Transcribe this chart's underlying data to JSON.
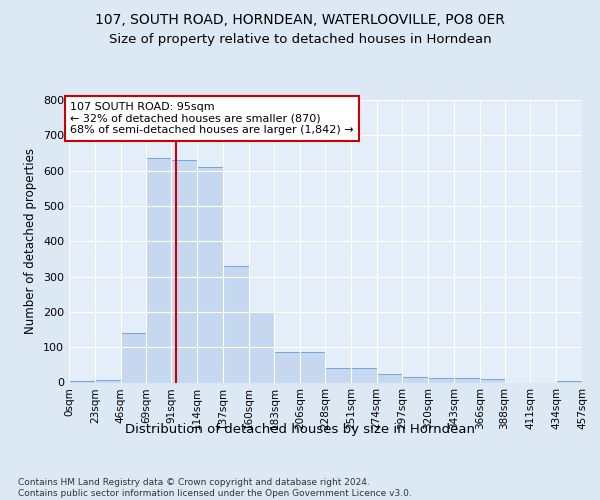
{
  "title1": "107, SOUTH ROAD, HORNDEAN, WATERLOOVILLE, PO8 0ER",
  "title2": "Size of property relative to detached houses in Horndean",
  "xlabel": "Distribution of detached houses by size in Horndean",
  "ylabel": "Number of detached properties",
  "bin_edges": [
    0,
    23,
    46,
    69,
    91,
    114,
    137,
    160,
    183,
    206,
    228,
    251,
    274,
    297,
    320,
    343,
    366,
    388,
    411,
    434,
    457
  ],
  "bar_heights": [
    5,
    8,
    140,
    635,
    630,
    610,
    330,
    200,
    85,
    85,
    40,
    40,
    25,
    15,
    12,
    12,
    10,
    0,
    0,
    5
  ],
  "bar_color": "#c5d8ef",
  "bar_edge_color": "#6fa8d8",
  "vline_x": 95,
  "vline_color": "#cc0000",
  "annotation_text": "107 SOUTH ROAD: 95sqm\n← 32% of detached houses are smaller (870)\n68% of semi-detached houses are larger (1,842) →",
  "annotation_box_color": "#ffffff",
  "annotation_box_edge": "#cc0000",
  "bg_color": "#dce8f4",
  "plot_bg_color": "#e4eef8",
  "footnote": "Contains HM Land Registry data © Crown copyright and database right 2024.\nContains public sector information licensed under the Open Government Licence v3.0.",
  "ylim_max": 800,
  "yticks": [
    0,
    100,
    200,
    300,
    400,
    500,
    600,
    700,
    800
  ],
  "title1_fontsize": 10,
  "title2_fontsize": 9.5,
  "ylabel_fontsize": 8.5,
  "xlabel_fontsize": 9.5,
  "tick_fontsize": 7.5,
  "annotation_fontsize": 8,
  "footnote_fontsize": 6.5,
  "tick_labels": [
    "0sqm",
    "23sqm",
    "46sqm",
    "69sqm",
    "91sqm",
    "114sqm",
    "137sqm",
    "160sqm",
    "183sqm",
    "206sqm",
    "228sqm",
    "251sqm",
    "274sqm",
    "297sqm",
    "320sqm",
    "343sqm",
    "366sqm",
    "388sqm",
    "411sqm",
    "434sqm",
    "457sqm"
  ]
}
